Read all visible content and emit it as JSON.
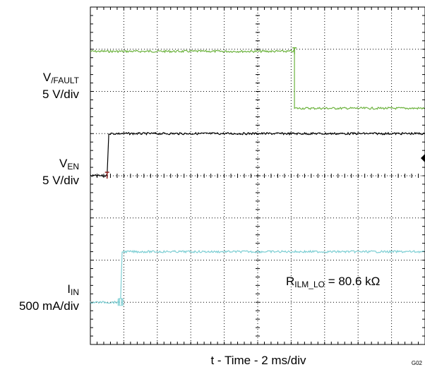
{
  "figure_id": "G02",
  "chart_data": {
    "type": "line",
    "xlabel": "t - Time - 2 ms/div",
    "grid": true,
    "x_divisions": 10,
    "y_divisions": 8,
    "time_per_div_ms": 2,
    "annotation": {
      "main": "R",
      "sub": "ILM_LO",
      "rest": " = 80.6 kΩ"
    },
    "channels": [
      {
        "name_main": "V",
        "name_sub": "/FAULT",
        "scale": "5 V/div",
        "color": "#6db33f",
        "ref_div": 6.95,
        "low_div": 5.6,
        "high_div": 6.95,
        "x_ms": [
          0,
          12.2,
          12.2,
          20
        ],
        "y_div": [
          6.95,
          6.95,
          5.6,
          5.6
        ]
      },
      {
        "name_main": "V",
        "name_sub": "EN",
        "scale": "5 V/div",
        "color": "#000000",
        "ref_div": 4.0,
        "low_div": 4.0,
        "high_div": 5.0,
        "x_ms": [
          0,
          1.0,
          1.1,
          20
        ],
        "y_div": [
          4.0,
          4.0,
          5.0,
          5.0
        ]
      },
      {
        "name_main": "I",
        "name_sub": "IN",
        "scale": "500 mA/div",
        "color": "#7ecfd4",
        "ref_div": 1.0,
        "low_div": 1.0,
        "high_div": 2.2,
        "x_ms": [
          0,
          1.8,
          1.9,
          20
        ],
        "y_div": [
          1.0,
          1.0,
          2.2,
          2.2
        ]
      }
    ]
  }
}
